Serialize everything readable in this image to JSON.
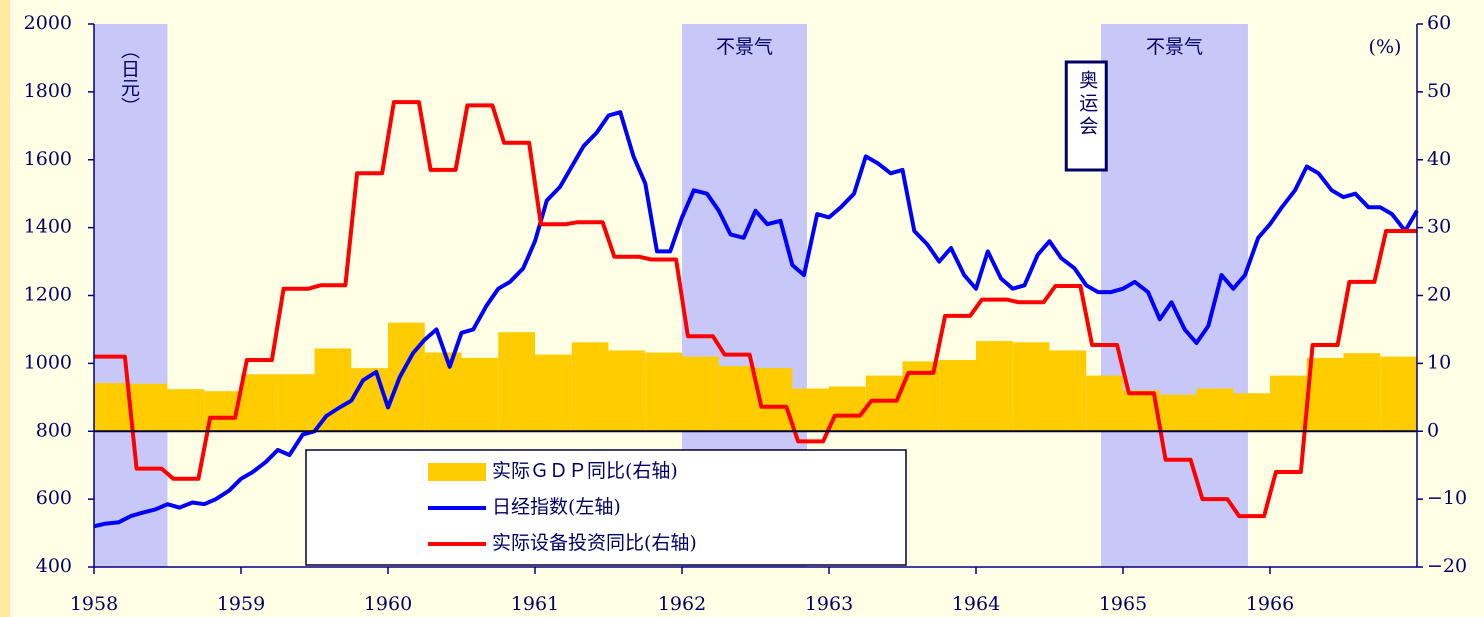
{
  "chart_data": {
    "type": "combo",
    "xlim": [
      1958,
      1967
    ],
    "xticks": [
      1958,
      1959,
      1960,
      1961,
      1962,
      1963,
      1964,
      1965,
      1966
    ],
    "ylim": [
      400,
      2000
    ],
    "yticks": [
      400,
      600,
      800,
      1000,
      1200,
      1400,
      1600,
      1800,
      2000
    ],
    "y2lim": [
      -20,
      60
    ],
    "y2ticks": [
      {
        "value": -20,
        "label": "−20"
      },
      {
        "value": -10,
        "label": "−10"
      },
      0,
      10,
      20,
      30,
      40,
      50,
      60
    ],
    "y_label": "（日元）",
    "y2_label": "(%)",
    "legend": "lower-center",
    "shaded_regions": [
      {
        "start": 1958,
        "end": 1958.5
      },
      {
        "start": 1962,
        "end": 1962.85,
        "label": "不景气"
      },
      {
        "start": 1964.85,
        "end": 1965.85,
        "label": "不景气"
      }
    ],
    "annotations": [
      {
        "x": 1964.75,
        "text": "奥运会"
      }
    ],
    "series": [
      {
        "name": "实际ＧＤＰ同比(右轴)",
        "type": "bar",
        "axis": "y2",
        "color": "#ffcc00",
        "x": [
          1958,
          1958.25,
          1958.5,
          1958.75,
          1959,
          1959.25,
          1959.5,
          1959.75,
          1960,
          1960.25,
          1960.5,
          1960.75,
          1961,
          1961.25,
          1961.5,
          1961.75,
          1962,
          1962.25,
          1962.5,
          1962.75,
          1963,
          1963.25,
          1963.5,
          1963.75,
          1964,
          1964.25,
          1964.5,
          1964.75,
          1965,
          1965.25,
          1965.5,
          1965.75,
          1966,
          1966.25,
          1966.5,
          1966.75
        ],
        "values": [
          7.1,
          7.0,
          6.2,
          5.9,
          8.4,
          8.4,
          12.2,
          9.3,
          16.0,
          11.6,
          10.8,
          14.6,
          11.3,
          13.1,
          11.9,
          11.6,
          11.0,
          9.6,
          9.3,
          6.3,
          6.6,
          8.2,
          10.3,
          10.5,
          13.3,
          13.1,
          11.9,
          8.2,
          6.0,
          5.4,
          6.3,
          5.6,
          8.2,
          10.8,
          11.5,
          11.0
        ]
      },
      {
        "name": "日经指数(左轴)",
        "type": "line",
        "axis": "y",
        "color": "#0000ff",
        "x": [
          1958,
          1958.08,
          1958.17,
          1958.25,
          1958.33,
          1958.42,
          1958.5,
          1958.58,
          1958.67,
          1958.75,
          1958.83,
          1958.92,
          1959,
          1959.08,
          1959.17,
          1959.25,
          1959.33,
          1959.42,
          1959.5,
          1959.58,
          1959.67,
          1959.75,
          1959.83,
          1959.92,
          1960,
          1960.08,
          1960.17,
          1960.25,
          1960.33,
          1960.42,
          1960.5,
          1960.58,
          1960.67,
          1960.75,
          1960.83,
          1960.92,
          1961,
          1961.08,
          1961.17,
          1961.25,
          1961.33,
          1961.42,
          1961.5,
          1961.58,
          1961.67,
          1961.75,
          1961.83,
          1961.92,
          1962,
          1962.08,
          1962.17,
          1962.25,
          1962.33,
          1962.42,
          1962.5,
          1962.58,
          1962.67,
          1962.75,
          1962.83,
          1962.92,
          1963,
          1963.08,
          1963.17,
          1963.25,
          1963.33,
          1963.42,
          1963.5,
          1963.58,
          1963.67,
          1963.75,
          1963.83,
          1963.92,
          1964,
          1964.08,
          1964.17,
          1964.25,
          1964.33,
          1964.42,
          1964.5,
          1964.58,
          1964.67,
          1964.75,
          1964.83,
          1964.92,
          1965,
          1965.08,
          1965.17,
          1965.25,
          1965.33,
          1965.42,
          1965.5,
          1965.58,
          1965.67,
          1965.75,
          1965.83,
          1965.92,
          1966,
          1966.08,
          1966.17,
          1966.25,
          1966.33,
          1966.42,
          1966.5,
          1966.58,
          1966.67,
          1966.75,
          1966.83,
          1966.92,
          1967
        ],
        "values": [
          520,
          528,
          532,
          550,
          560,
          570,
          585,
          575,
          590,
          585,
          600,
          625,
          660,
          680,
          710,
          745,
          730,
          790,
          800,
          845,
          870,
          890,
          950,
          975,
          870,
          960,
          1030,
          1070,
          1100,
          990,
          1090,
          1100,
          1170,
          1220,
          1240,
          1280,
          1360,
          1480,
          1520,
          1580,
          1640,
          1680,
          1730,
          1740,
          1610,
          1530,
          1330,
          1330,
          1430,
          1510,
          1500,
          1450,
          1380,
          1370,
          1450,
          1410,
          1420,
          1290,
          1260,
          1440,
          1430,
          1460,
          1500,
          1610,
          1590,
          1560,
          1570,
          1390,
          1350,
          1300,
          1340,
          1260,
          1220,
          1330,
          1250,
          1220,
          1230,
          1320,
          1360,
          1310,
          1280,
          1230,
          1210,
          1210,
          1220,
          1240,
          1210,
          1130,
          1180,
          1100,
          1060,
          1110,
          1260,
          1220,
          1260,
          1370,
          1410,
          1460,
          1510,
          1580,
          1560,
          1510,
          1490,
          1500,
          1460,
          1460,
          1440,
          1390,
          1450
        ]
      },
      {
        "name": "实际设备投资同比(右轴)",
        "type": "line",
        "axis": "y2",
        "color": "#ff0000",
        "x": [
          1958,
          1958.21,
          1958.29,
          1958.46,
          1958.54,
          1958.71,
          1958.79,
          1958.96,
          1959.04,
          1959.21,
          1959.29,
          1959.46,
          1959.54,
          1959.71,
          1959.79,
          1959.96,
          1960.04,
          1960.21,
          1960.29,
          1960.46,
          1960.54,
          1960.71,
          1960.79,
          1960.96,
          1961.04,
          1961.21,
          1961.29,
          1961.46,
          1961.54,
          1961.71,
          1961.79,
          1961.96,
          1962.04,
          1962.21,
          1962.29,
          1962.46,
          1962.54,
          1962.71,
          1962.79,
          1962.96,
          1963.04,
          1963.21,
          1963.29,
          1963.46,
          1963.54,
          1963.71,
          1963.79,
          1963.96,
          1964.04,
          1964.21,
          1964.29,
          1964.46,
          1964.54,
          1964.71,
          1964.79,
          1964.96,
          1965.04,
          1965.21,
          1965.29,
          1965.46,
          1965.54,
          1965.71,
          1965.79,
          1965.96,
          1966.04,
          1966.21,
          1966.29,
          1966.46,
          1966.54,
          1966.71,
          1966.79,
          1967
        ],
        "values": [
          11,
          11,
          -5.5,
          -5.5,
          -7,
          -7,
          2,
          2,
          10.5,
          10.5,
          21,
          21,
          21.5,
          21.5,
          38,
          38,
          48.5,
          48.5,
          38.5,
          38.5,
          48,
          48,
          42.5,
          42.5,
          30.5,
          30.5,
          30.8,
          30.8,
          25.7,
          25.7,
          25.3,
          25.3,
          14,
          14,
          11.3,
          11.3,
          3.6,
          3.6,
          -1.5,
          -1.5,
          2.3,
          2.3,
          4.5,
          4.5,
          8.6,
          8.6,
          17,
          17,
          19.4,
          19.4,
          19,
          19,
          21.4,
          21.4,
          12.7,
          12.7,
          5.6,
          5.6,
          -4.2,
          -4.2,
          -10,
          -10,
          -12.5,
          -12.5,
          -6,
          -6,
          12.7,
          12.7,
          22,
          22,
          29.5,
          29.5
        ]
      }
    ]
  }
}
